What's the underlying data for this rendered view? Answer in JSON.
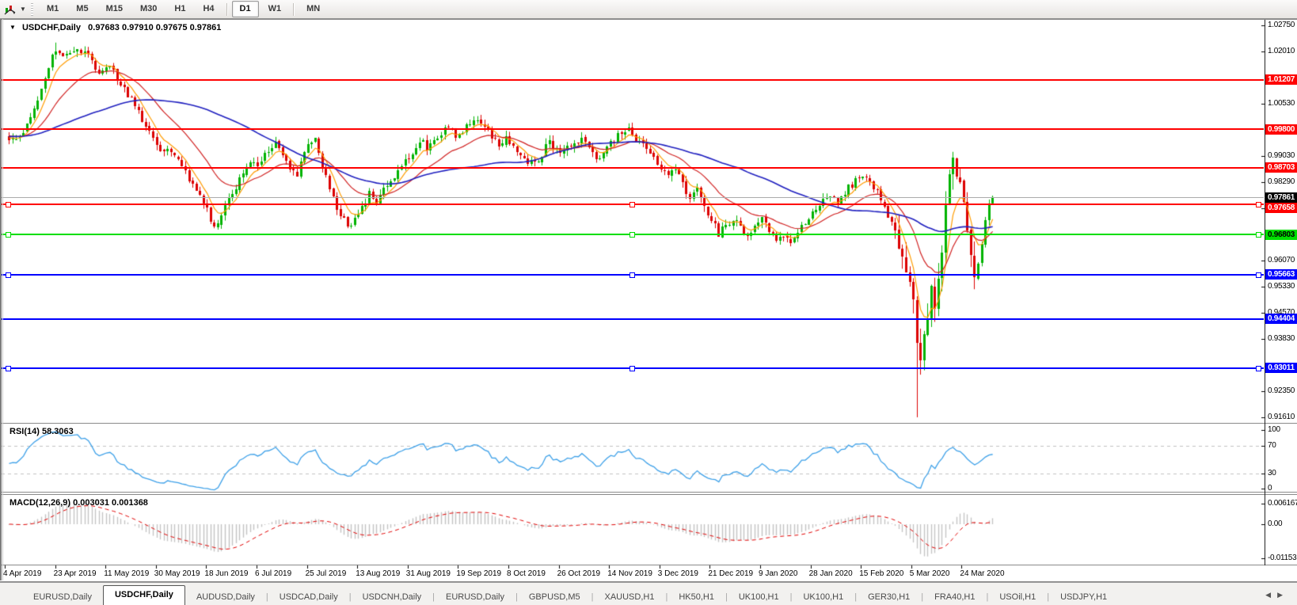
{
  "toolbar": {
    "chart_icon": "charts-indicator-icon",
    "timeframes": [
      "M1",
      "M5",
      "M15",
      "M30",
      "H1",
      "H4",
      "D1",
      "W1",
      "MN"
    ],
    "active_timeframe": "D1"
  },
  "chart": {
    "symbol_title": "USDCHF,Daily",
    "ohlc_text": "0.97683 0.97910 0.97675 0.97861"
  },
  "price_axis": {
    "ticks": [
      "1.02750",
      "1.02010",
      "1.00530",
      "0.99030",
      "0.98290",
      "0.97550",
      "0.96070",
      "0.95330",
      "0.94570",
      "0.93830",
      "0.92350",
      "0.91610"
    ]
  },
  "levels": [
    {
      "price": "1.01207",
      "color": "#ff0000",
      "text_color": "#ffffff",
      "selected": false
    },
    {
      "price": "0.99800",
      "color": "#ff0000",
      "text_color": "#ffffff",
      "selected": false
    },
    {
      "price": "0.98703",
      "color": "#ff0000",
      "text_color": "#ffffff",
      "selected": false
    },
    {
      "price": "0.97658",
      "color": "#ff0000",
      "text_color": "#ffffff",
      "selected": true
    },
    {
      "price": "0.96803",
      "color": "#00de00",
      "text_color": "#000000",
      "selected": true
    },
    {
      "price": "0.95663",
      "color": "#0000ff",
      "text_color": "#ffffff",
      "selected": true
    },
    {
      "price": "0.94404",
      "color": "#0000ff",
      "text_color": "#ffffff",
      "selected": false
    },
    {
      "price": "0.93011",
      "color": "#0000ff",
      "text_color": "#ffffff",
      "selected": true
    }
  ],
  "current_price": {
    "price": "0.97861",
    "line_color": "#ababab",
    "badge_bg": "#000000",
    "badge_text": "#ffffff"
  },
  "rsi": {
    "label": "RSI(14)",
    "value": "58.3063",
    "scale": [
      "100",
      "70",
      "30",
      "0"
    ],
    "dashed_levels": [
      70,
      30
    ],
    "line_color": "#3da0e8"
  },
  "macd": {
    "label": "MACD(12,26,9)",
    "value_main": "0.003031",
    "value_signal": "0.001368",
    "scale": [
      "0.006167",
      "0.00",
      "-0.01153"
    ],
    "hist_color": "#c4c4c4",
    "signal_color": "#e00000"
  },
  "date_axis": [
    "4 Apr 2019",
    "23 Apr 2019",
    "11 May 2019",
    "30 May 2019",
    "18 Jun 2019",
    "6 Jul 2019",
    "25 Jul 2019",
    "13 Aug 2019",
    "31 Aug 2019",
    "19 Sep 2019",
    "8 Oct 2019",
    "26 Oct 2019",
    "14 Nov 2019",
    "3 Dec 2019",
    "21 Dec 2019",
    "9 Jan 2020",
    "28 Jan 2020",
    "15 Feb 2020",
    "5 Mar 2020",
    "24 Mar 2020"
  ],
  "tabs": {
    "items": [
      "EURUSD,Daily",
      "USDCHF,Daily",
      "AUDUSD,Daily",
      "USDCAD,Daily",
      "USDCNH,Daily",
      "EURUSD,Daily",
      "GBPUSD,M5",
      "XAUUSD,H1",
      "HK50,H1",
      "UK100,H1",
      "UK100,H1",
      "GER30,H1",
      "FRA40,H1",
      "USOil,H1",
      "USDJPY,H1"
    ],
    "active_index": 1
  },
  "chart_data": {
    "type": "candlestick",
    "symbol": "USDCHF",
    "period": "Daily",
    "candles_visible": 274,
    "last_ohlc": {
      "open": 0.97683,
      "high": 0.9791,
      "low": 0.97675,
      "close": 0.97861
    },
    "y_axis_range": [
      0.9147,
      1.0287
    ],
    "horizontal_levels": [
      1.01207,
      0.998,
      0.98703,
      0.97658,
      0.96803,
      0.95663,
      0.94404,
      0.93011
    ],
    "close_path_anchors": [
      [
        -60,
        0.997
      ],
      [
        -48,
        0.9925
      ],
      [
        -36,
        0.9985
      ],
      [
        -24,
        0.994
      ],
      [
        -12,
        0.9975
      ],
      [
        -2,
        0.995
      ],
      [
        0,
        0.995
      ],
      [
        4,
        0.9975
      ],
      [
        8,
        1.006
      ],
      [
        11,
        1.015
      ],
      [
        13,
        1.021
      ],
      [
        16,
        1.0185
      ],
      [
        19,
        1.0205
      ],
      [
        22,
        1.019
      ],
      [
        25,
        1.0135
      ],
      [
        28,
        1.0155
      ],
      [
        31,
        1.0105
      ],
      [
        34,
        1.0065
      ],
      [
        37,
        1.0005
      ],
      [
        40,
        0.995
      ],
      [
        42,
        0.991
      ],
      [
        44,
        0.9935
      ],
      [
        47,
        0.9885
      ],
      [
        50,
        0.9835
      ],
      [
        53,
        0.9795
      ],
      [
        55,
        0.975
      ],
      [
        57,
        0.9705
      ],
      [
        59,
        0.974
      ],
      [
        62,
        0.979
      ],
      [
        65,
        0.986
      ],
      [
        67,
        0.9895
      ],
      [
        69,
        0.987
      ],
      [
        72,
        0.992
      ],
      [
        74,
        0.994
      ],
      [
        77,
        0.988
      ],
      [
        80,
        0.9855
      ],
      [
        83,
        0.9935
      ],
      [
        85,
        0.9945
      ],
      [
        88,
        0.984
      ],
      [
        91,
        0.976
      ],
      [
        93,
        0.972
      ],
      [
        95,
        0.97
      ],
      [
        97,
        0.9745
      ],
      [
        100,
        0.9795
      ],
      [
        102,
        0.9775
      ],
      [
        105,
        0.982
      ],
      [
        108,
        0.9865
      ],
      [
        111,
        0.9905
      ],
      [
        114,
        0.995
      ],
      [
        116,
        0.993
      ],
      [
        119,
        0.996
      ],
      [
        122,
        0.9985
      ],
      [
        124,
        0.996
      ],
      [
        127,
        0.999
      ],
      [
        129,
        1.0
      ],
      [
        132,
        0.999
      ],
      [
        134,
        0.996
      ],
      [
        136,
        0.993
      ],
      [
        138,
        0.9955
      ],
      [
        141,
        0.9915
      ],
      [
        144,
        0.9875
      ],
      [
        147,
        0.9895
      ],
      [
        150,
        0.9945
      ],
      [
        153,
        0.991
      ],
      [
        156,
        0.993
      ],
      [
        159,
        0.9955
      ],
      [
        161,
        0.992
      ],
      [
        163,
        0.9895
      ],
      [
        166,
        0.993
      ],
      [
        169,
        0.996
      ],
      [
        172,
        0.9975
      ],
      [
        174,
        0.9955
      ],
      [
        177,
        0.993
      ],
      [
        180,
        0.9885
      ],
      [
        183,
        0.985
      ],
      [
        185,
        0.9865
      ],
      [
        187,
        0.982
      ],
      [
        189,
        0.979
      ],
      [
        191,
        0.981
      ],
      [
        193,
        0.976
      ],
      [
        195,
        0.972
      ],
      [
        197,
        0.9685
      ],
      [
        199,
        0.9705
      ],
      [
        201,
        0.9725
      ],
      [
        203,
        0.97
      ],
      [
        205,
        0.968
      ],
      [
        207,
        0.9705
      ],
      [
        209,
        0.9725
      ],
      [
        211,
        0.969
      ],
      [
        213,
        0.966
      ],
      [
        215,
        0.9672
      ],
      [
        217,
        0.9655
      ],
      [
        219,
        0.969
      ],
      [
        221,
        0.972
      ],
      [
        223,
        0.9745
      ],
      [
        226,
        0.9775
      ],
      [
        228,
        0.979
      ],
      [
        230,
        0.9775
      ],
      [
        232,
        0.98
      ],
      [
        234,
        0.9825
      ],
      [
        236,
        0.9845
      ],
      [
        238,
        0.9838
      ],
      [
        240,
        0.9815
      ],
      [
        242,
        0.978
      ],
      [
        244,
        0.9735
      ],
      [
        246,
        0.968
      ],
      [
        248,
        0.962
      ],
      [
        250,
        0.9565
      ],
      [
        251,
        0.948
      ],
      [
        252,
        0.939
      ],
      [
        253,
        0.931
      ],
      [
        254,
        0.9375
      ],
      [
        255,
        0.945
      ],
      [
        256,
        0.953
      ],
      [
        257,
        0.948
      ],
      [
        258,
        0.956
      ],
      [
        259,
        0.965
      ],
      [
        260,
        0.974
      ],
      [
        261,
        0.984
      ],
      [
        262,
        0.989
      ],
      [
        263,
        0.986
      ],
      [
        264,
        0.982
      ],
      [
        265,
        0.976
      ],
      [
        266,
        0.968
      ],
      [
        267,
        0.96
      ],
      [
        268,
        0.9545
      ],
      [
        269,
        0.96
      ],
      [
        270,
        0.966
      ],
      [
        271,
        0.972
      ],
      [
        272,
        0.97683
      ],
      [
        273,
        0.97861
      ]
    ],
    "extremes": {
      "high_peak": [
        13,
        1.0226
      ],
      "crash_low": [
        252,
        0.9161
      ],
      "rebound_high": [
        262,
        0.9901
      ]
    },
    "moving_averages": [
      {
        "type": "ema",
        "period": 6,
        "color": "#ff9c00"
      },
      {
        "type": "ema",
        "period": 20,
        "color": "#d02020"
      },
      {
        "type": "sma",
        "period": 55,
        "color": "#1f1fbf"
      }
    ],
    "indicators": [
      {
        "name": "RSI",
        "period": 14,
        "current": 58.3063
      },
      {
        "name": "MACD",
        "fast": 12,
        "slow": 26,
        "signal": 9,
        "current_main": 0.003031,
        "current_signal": 0.001368
      }
    ],
    "candle_up_color": "#00b300",
    "candle_down_color": "#dc0000"
  }
}
